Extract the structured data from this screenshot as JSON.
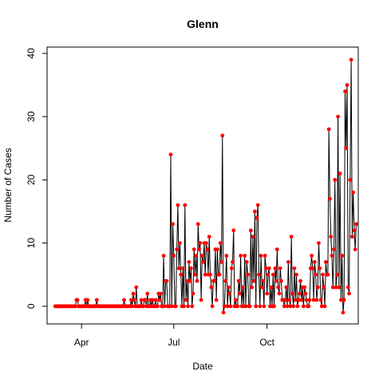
{
  "chart_data": {
    "type": "line",
    "title": "Glenn",
    "xlabel": "Date",
    "ylabel": "Number of Cases",
    "x_start_date": "2020-03-06",
    "xlim": [
      "2020-02-27",
      "2020-12-30"
    ],
    "ylim": [
      -2.8,
      41.0
    ],
    "x_ticks": [
      {
        "label": "Apr",
        "date": "2020-04-01"
      },
      {
        "label": "Jul",
        "date": "2020-07-01"
      },
      {
        "label": "Oct",
        "date": "2020-10-01"
      }
    ],
    "y_ticks": [
      0,
      10,
      20,
      30,
      40
    ],
    "line_color": "#000000",
    "point_color": "#ff0000",
    "values": [
      0,
      0,
      0,
      0,
      0,
      0,
      0,
      0,
      0,
      0,
      0,
      0,
      0,
      0,
      0,
      0,
      0,
      0,
      0,
      0,
      0,
      1,
      1,
      0,
      0,
      0,
      0,
      0,
      0,
      0,
      1,
      0,
      1,
      0,
      0,
      0,
      0,
      0,
      0,
      0,
      0,
      1,
      0,
      0,
      0,
      0,
      0,
      0,
      0,
      0,
      0,
      0,
      0,
      0,
      0,
      0,
      0,
      0,
      0,
      0,
      0,
      0,
      0,
      0,
      0,
      0,
      0,
      0,
      1,
      0,
      0,
      0,
      0,
      0,
      0,
      1,
      0,
      2,
      1,
      0,
      3,
      0,
      0,
      0,
      0,
      1,
      0,
      0,
      1,
      1,
      0,
      2,
      0,
      0,
      1,
      0,
      1,
      0,
      0,
      1,
      0,
      0,
      2,
      1,
      2,
      0,
      0,
      8,
      0,
      4,
      4,
      0,
      0,
      0,
      24,
      0,
      13,
      8,
      0,
      0,
      9,
      16,
      6,
      10,
      5,
      0,
      6,
      0,
      16,
      1,
      4,
      0,
      7,
      4,
      6,
      0,
      2,
      9,
      5,
      8,
      4,
      13,
      9,
      10,
      1,
      8,
      7,
      10,
      5,
      10,
      9,
      5,
      11,
      5,
      3,
      0,
      4,
      4,
      9,
      1,
      9,
      5,
      5,
      10,
      7,
      27,
      -1,
      0,
      4,
      8,
      0,
      3,
      2,
      0,
      6,
      7,
      12,
      0,
      1,
      0,
      0,
      4,
      2,
      8,
      0,
      3,
      0,
      8,
      0,
      7,
      5,
      0,
      0,
      12,
      3,
      11,
      4,
      15,
      0,
      14,
      16,
      5,
      0,
      8,
      3,
      4,
      0,
      8,
      6,
      2,
      5,
      6,
      0,
      3,
      0,
      5,
      0,
      6,
      4,
      9,
      3,
      2,
      6,
      4,
      1,
      1,
      0,
      1,
      3,
      0,
      7,
      1,
      0,
      11,
      2,
      0,
      6,
      1,
      5,
      0,
      1,
      2,
      4,
      1,
      3,
      0,
      3,
      2,
      1,
      0,
      0,
      1,
      6,
      8,
      6,
      1,
      7,
      5,
      1,
      3,
      10,
      6,
      1,
      0,
      5,
      3,
      0,
      7,
      5,
      5,
      28,
      17,
      11,
      8,
      3,
      9,
      20,
      3,
      5,
      30,
      3,
      21,
      1,
      8,
      -1,
      1,
      34,
      25,
      35,
      3,
      2,
      20,
      39,
      11,
      18,
      12,
      9,
      13
    ]
  }
}
